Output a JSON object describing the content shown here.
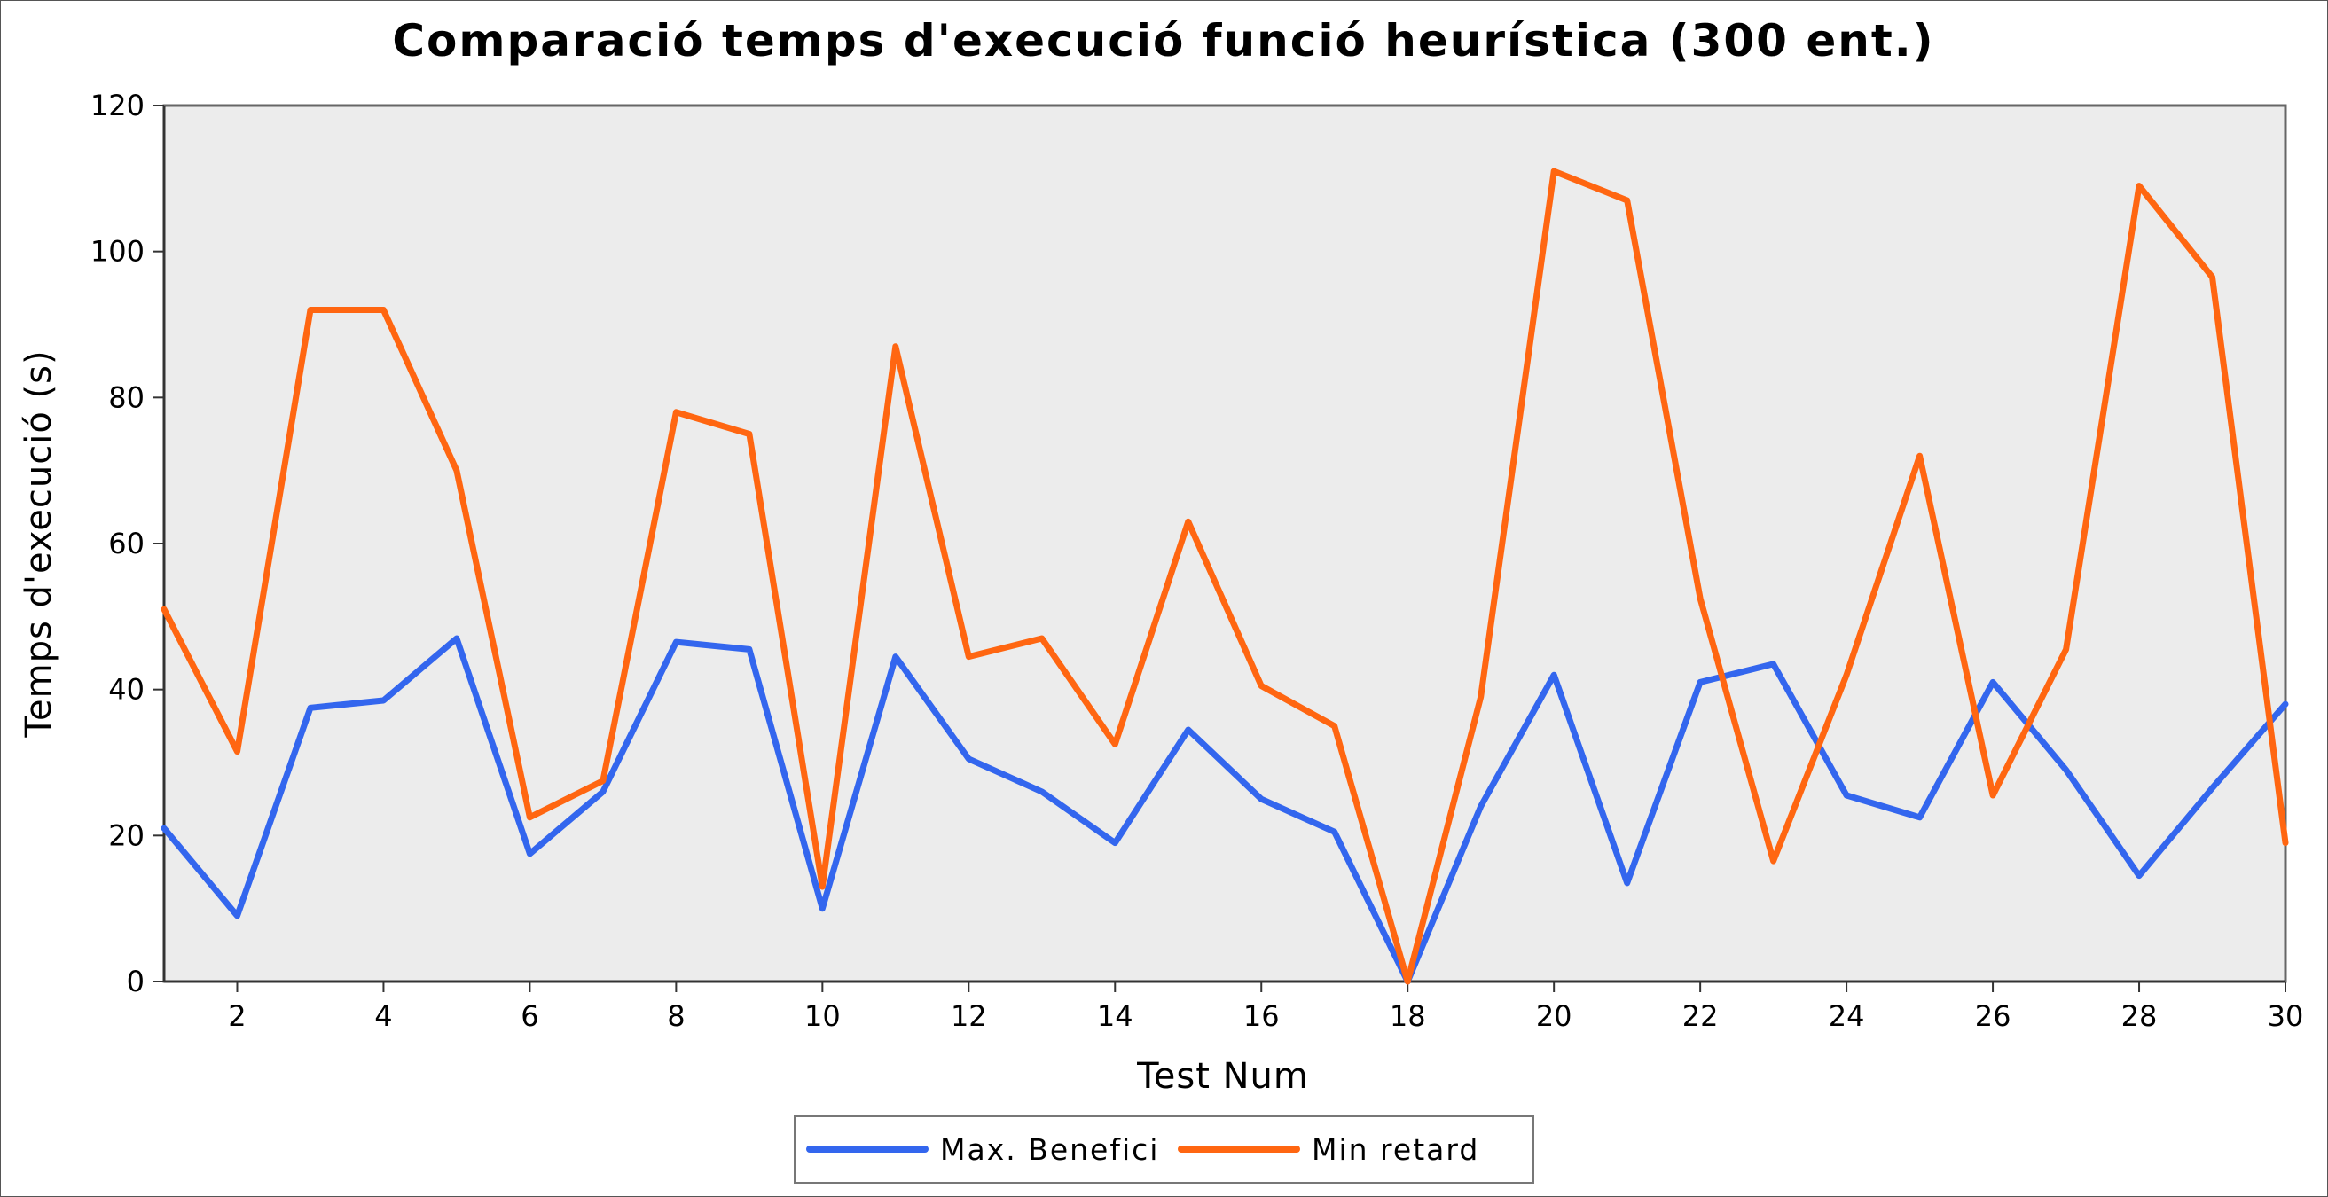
{
  "chart_data": {
    "type": "line",
    "title": "Comparació temps d'execució funció heurística (300 ent.)",
    "xlabel": "Test Num",
    "ylabel": "Temps d'execució (s)",
    "xlim": [
      1,
      30
    ],
    "ylim": [
      0,
      120
    ],
    "x_ticks": [
      2,
      4,
      6,
      8,
      10,
      12,
      14,
      16,
      18,
      20,
      22,
      24,
      26,
      28,
      30
    ],
    "y_ticks": [
      0,
      20,
      40,
      60,
      80,
      100,
      120
    ],
    "grid": false,
    "legend_position": "bottom-center",
    "plot_background": "#ececec",
    "x": [
      1,
      2,
      3,
      4,
      5,
      6,
      7,
      8,
      9,
      10,
      11,
      12,
      13,
      14,
      15,
      16,
      17,
      18,
      19,
      20,
      21,
      22,
      23,
      24,
      25,
      26,
      27,
      28,
      29,
      30
    ],
    "series": [
      {
        "name": "Max. Benefici",
        "color": "#3366ee",
        "values": [
          21,
          9,
          37.5,
          38.5,
          47,
          17.5,
          26,
          46.5,
          45.5,
          10,
          44.5,
          30.5,
          26,
          19,
          34.5,
          25,
          20.5,
          0,
          24,
          42,
          13.5,
          41,
          43.5,
          25.5,
          22.5,
          41,
          29,
          14.5,
          26.5,
          38
        ]
      },
      {
        "name": "Min retard",
        "color": "#ff6611",
        "values": [
          51,
          31.5,
          92,
          92,
          70,
          22.5,
          27.5,
          78,
          75,
          13,
          87,
          44.5,
          47,
          32.5,
          63,
          40.5,
          35,
          0,
          39,
          111,
          107,
          52.5,
          16.5,
          42,
          72,
          25.5,
          45.5,
          109,
          96.5,
          19
        ]
      }
    ]
  }
}
